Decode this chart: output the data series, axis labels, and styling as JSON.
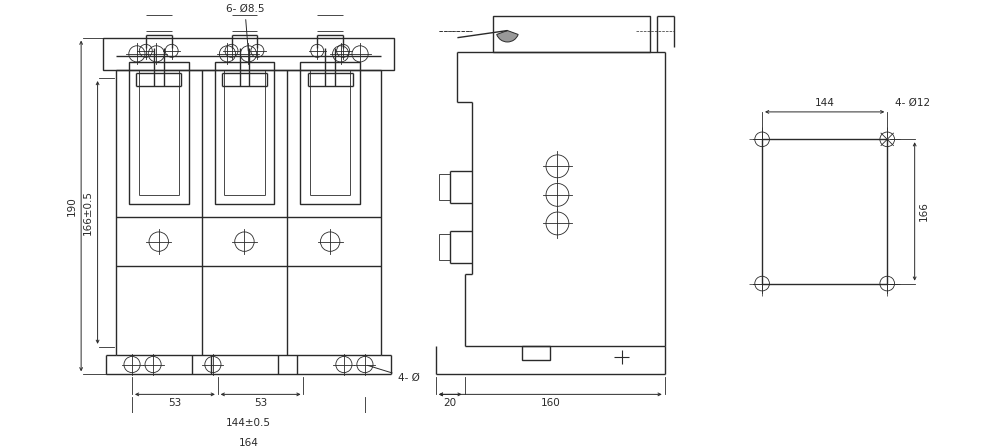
{
  "bg_color": "#ffffff",
  "line_color": "#2a2a2a",
  "lw": 1.0,
  "thin_lw": 0.6,
  "fig_width": 10.0,
  "fig_height": 4.47,
  "annotations": {
    "top_label": "6- Ø8.5",
    "bottom_right_label": "4- Ø",
    "dim_190": "190",
    "dim_166": "166±0.5",
    "dim_53a": "53",
    "dim_53b": "53",
    "dim_144": "144±0.5",
    "dim_164": "164",
    "dim_160": "160",
    "dim_20": "20",
    "right_dim_144": "144",
    "right_label": "4- Ø12",
    "right_dim_166": "166"
  }
}
